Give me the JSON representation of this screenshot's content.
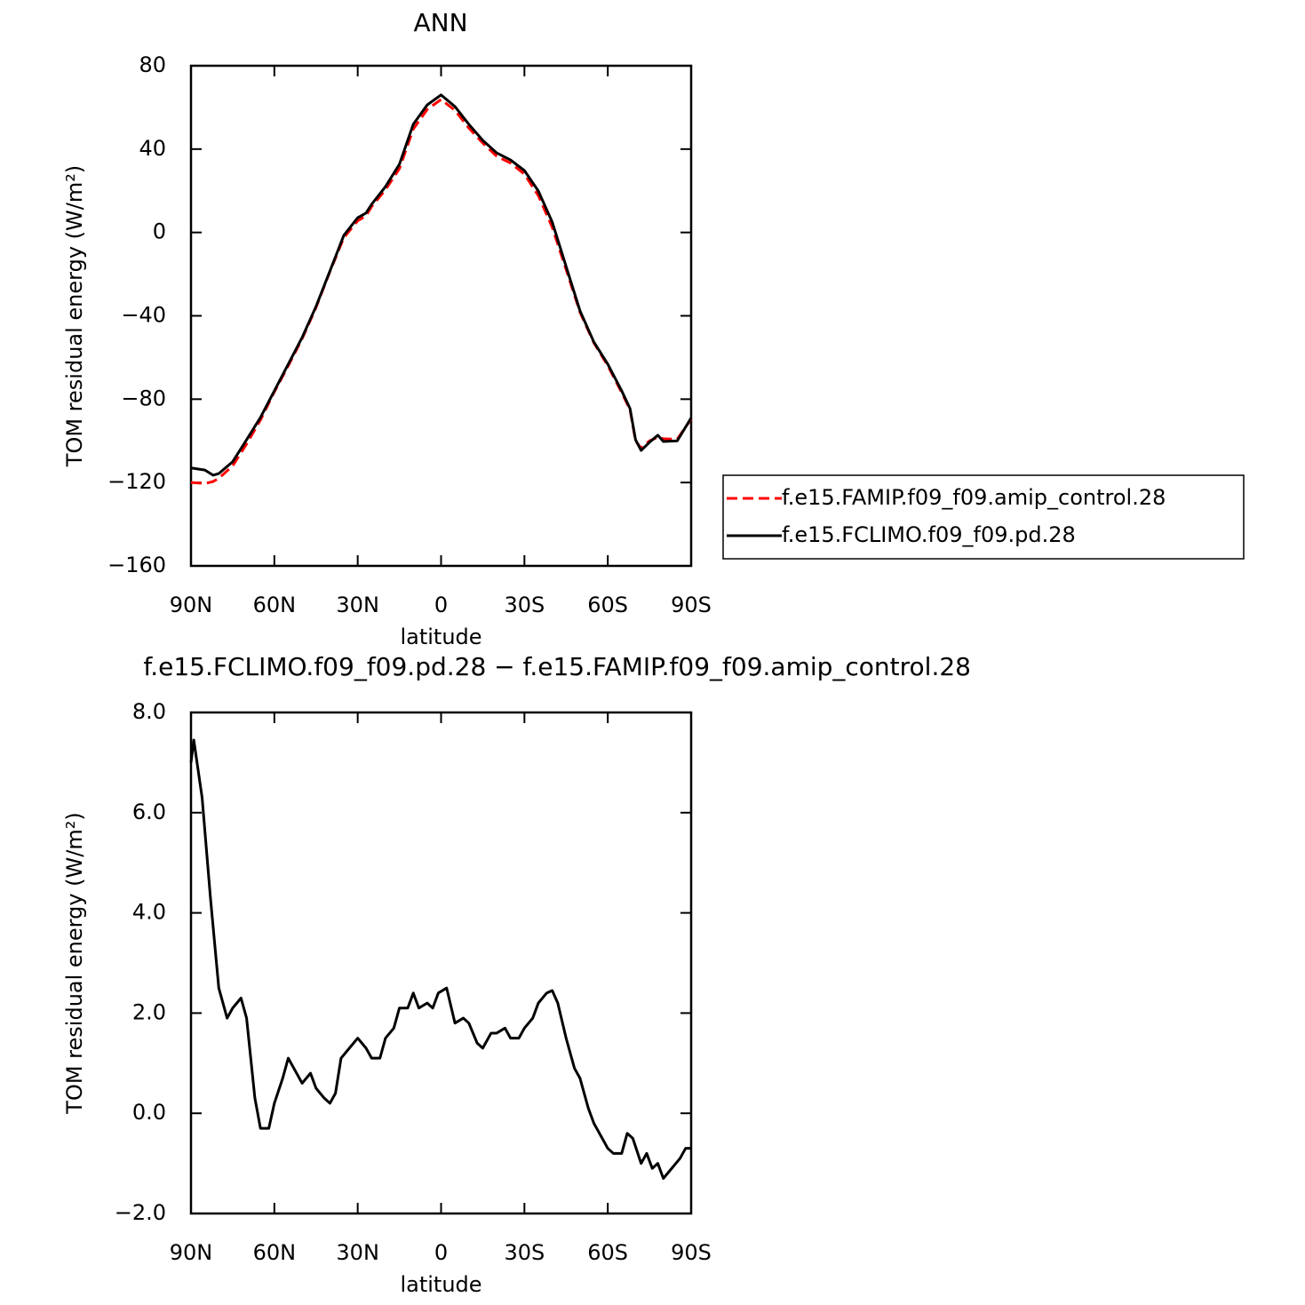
{
  "chart_data": [
    {
      "type": "line",
      "title": "ANN",
      "xlabel": "latitude",
      "ylabel": "TOM residual energy (W/m²)",
      "x": [
        90,
        85,
        82,
        80,
        75,
        70,
        65,
        60,
        55,
        50,
        45,
        40,
        35,
        30,
        27,
        25,
        20,
        15,
        10,
        5,
        0,
        -5,
        -10,
        -15,
        -20,
        -25,
        -30,
        -35,
        -40,
        -45,
        -50,
        -55,
        -60,
        -65,
        -68,
        -70,
        -72,
        -75,
        -78,
        -80,
        -85,
        -90
      ],
      "series": [
        {
          "name": "f.e15.FAMIP.f09_f09.amip_control.28",
          "color": "#ff0000",
          "dashed": true,
          "values": [
            -120,
            -120.5,
            -119.5,
            -118,
            -112,
            -101.5,
            -90,
            -76.5,
            -64,
            -51,
            -36,
            -18.8,
            -2.5,
            5.6,
            8,
            12.4,
            20.5,
            30.6,
            49.6,
            59,
            63.8,
            58.6,
            50.1,
            42.9,
            36.6,
            33.3,
            28,
            17.7,
            2.5,
            -17.8,
            -38.3,
            -53,
            -63.9,
            -76.8,
            -85,
            -100,
            -103.6,
            -100,
            -98.3,
            -99,
            -99.2,
            -89.5
          ]
        },
        {
          "name": "f.e15.FCLIMO.f09_f09.pd.28",
          "color": "#000000",
          "dashed": false,
          "values": [
            -113,
            -114,
            -116.5,
            -115.7,
            -110,
            -99.5,
            -88.8,
            -76,
            -63.2,
            -50.4,
            -35.5,
            -18.5,
            -1.4,
            7.1,
            9.3,
            13.5,
            22,
            32.7,
            51.9,
            61.2,
            66,
            60.4,
            51.9,
            44.2,
            38.2,
            34.8,
            29.7,
            19.9,
            5,
            -16.3,
            -37.6,
            -52.6,
            -63.2,
            -76,
            -84.5,
            -99.5,
            -104.6,
            -100.7,
            -97.3,
            -100.3,
            -100,
            -89
          ]
        }
      ],
      "xlim": [
        90,
        -90
      ],
      "xticks": [
        {
          "value": 90,
          "label": "90N"
        },
        {
          "value": 60,
          "label": "60N"
        },
        {
          "value": 30,
          "label": "30N"
        },
        0,
        {
          "value": -30,
          "label": "30S"
        },
        {
          "value": -60,
          "label": "60S"
        },
        {
          "value": -90,
          "label": "90S"
        }
      ],
      "ylim": [
        -160,
        80
      ],
      "yticks": [
        {
          "value": -160,
          "label": "−160"
        },
        {
          "value": -120,
          "label": "−120"
        },
        {
          "value": -80,
          "label": "−80"
        },
        {
          "value": -40,
          "label": "−40"
        },
        0,
        40,
        80
      ],
      "legend": "right",
      "grid": false
    },
    {
      "type": "line",
      "title": "f.e15.FCLIMO.f09_f09.pd.28 − f.e15.FAMIP.f09_f09.amip_control.28",
      "xlabel": "latitude",
      "ylabel": "TOM residual energy (W/m²)",
      "x": [
        90,
        89,
        86,
        83,
        80,
        77,
        75,
        72,
        70,
        67,
        65,
        62,
        60,
        57,
        55,
        52,
        50,
        47,
        45,
        42,
        40,
        38,
        36,
        33,
        30,
        27,
        25,
        22,
        20,
        17,
        15,
        12,
        10,
        8,
        5,
        3,
        1,
        -2,
        -5,
        -8,
        -10,
        -13,
        -15,
        -18,
        -20,
        -23,
        -25,
        -28,
        -30,
        -33,
        -35,
        -38,
        -40,
        -42,
        -45,
        -48,
        -50,
        -53,
        -55,
        -58,
        -60,
        -62,
        -65,
        -67,
        -69,
        -72,
        -74,
        -76,
        -78,
        -80,
        -83,
        -86,
        -88,
        -90
      ],
      "series": [
        {
          "color": "#000000",
          "dashed": false,
          "values": [
            7.0,
            7.45,
            6.3,
            4.3,
            2.5,
            1.9,
            2.1,
            2.3,
            1.9,
            0.3,
            -0.3,
            -0.3,
            0.2,
            0.7,
            1.1,
            0.8,
            0.6,
            0.8,
            0.5,
            0.3,
            0.2,
            0.4,
            1.1,
            1.3,
            1.5,
            1.3,
            1.1,
            1.1,
            1.5,
            1.7,
            2.1,
            2.1,
            2.4,
            2.1,
            2.2,
            2.1,
            2.4,
            2.5,
            1.8,
            1.9,
            1.8,
            1.4,
            1.3,
            1.6,
            1.6,
            1.7,
            1.5,
            1.5,
            1.7,
            1.9,
            2.2,
            2.4,
            2.45,
            2.2,
            1.5,
            0.9,
            0.7,
            0.1,
            -0.2,
            -0.5,
            -0.7,
            -0.8,
            -0.8,
            -0.4,
            -0.5,
            -1.0,
            -0.8,
            -1.1,
            -1.0,
            -1.3,
            -1.1,
            -0.9,
            -0.7,
            -0.7
          ]
        }
      ],
      "xlim": [
        90,
        -90
      ],
      "xticks": [
        {
          "value": 90,
          "label": "90N"
        },
        {
          "value": 60,
          "label": "60N"
        },
        {
          "value": 30,
          "label": "30N"
        },
        0,
        {
          "value": -30,
          "label": "30S"
        },
        {
          "value": -60,
          "label": "60S"
        },
        {
          "value": -90,
          "label": "90S"
        }
      ],
      "ylim": [
        -2,
        8
      ],
      "yticks": [
        {
          "value": -2,
          "label": "−2.0"
        },
        {
          "value": 0,
          "label": "0.0"
        },
        {
          "value": 2,
          "label": "2.0"
        },
        {
          "value": 4,
          "label": "4.0"
        },
        {
          "value": 6,
          "label": "6.0"
        },
        {
          "value": 8,
          "label": "8.0"
        }
      ],
      "grid": false
    }
  ]
}
